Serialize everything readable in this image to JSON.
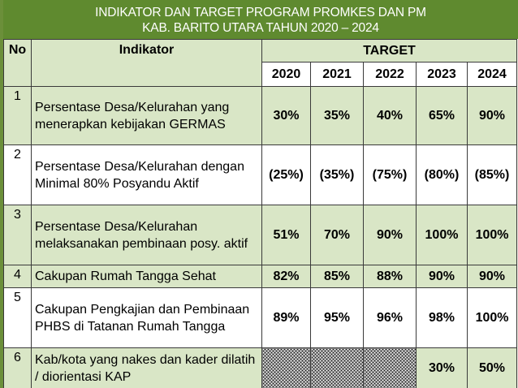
{
  "title": {
    "line1": "INDIKATOR  DAN  TARGET PROGRAM PROMKES  DAN PM",
    "line2": "KAB. BARITO UTARA TAHUN 2020 – 2024"
  },
  "table": {
    "header": {
      "no": "No",
      "indikator": "Indikator",
      "target": "TARGET"
    },
    "years": [
      "2020",
      "2021",
      "2022",
      "2023",
      "2024"
    ],
    "rows": [
      {
        "no": "1",
        "indikator": "Persentase Desa/Kelurahan yang menerapkan kebijakan GERMAS",
        "values": [
          "30%",
          "35%",
          "40%",
          "65%",
          "90%"
        ]
      },
      {
        "no": "2",
        "indikator": "Persentase Desa/Kelurahan dengan Minimal 80% Posyandu Aktif",
        "values": [
          "(25%)",
          "(35%)",
          "(75%)",
          "(80%)",
          "(85%)"
        ]
      },
      {
        "no": "3",
        "indikator": "Persentase  Desa/Kelurahan melaksanakan pembinaan posy. aktif",
        "values": [
          "51%",
          "70%",
          "90%",
          "100%",
          "100%"
        ]
      },
      {
        "no": "4",
        "indikator": "Cakupan Rumah Tangga Sehat",
        "values": [
          "82%",
          "85%",
          "88%",
          "90%",
          "90%"
        ]
      },
      {
        "no": "5",
        "indikator": "Cakupan Pengkajian dan Pembinaan PHBS di Tatanan Rumah Tangga",
        "values": [
          "89%",
          "95%",
          "96%",
          "98%",
          "100%"
        ]
      },
      {
        "no": "6",
        "indikator": "Kab/kota yang nakes dan kader dilatih / diorientasi KAP",
        "values": [
          "",
          "",
          "",
          "30%",
          "50%"
        ]
      }
    ]
  },
  "colors": {
    "title_bg": "#5f8a2f",
    "row_green": "#d9e6c6",
    "row_white": "#ffffff"
  }
}
